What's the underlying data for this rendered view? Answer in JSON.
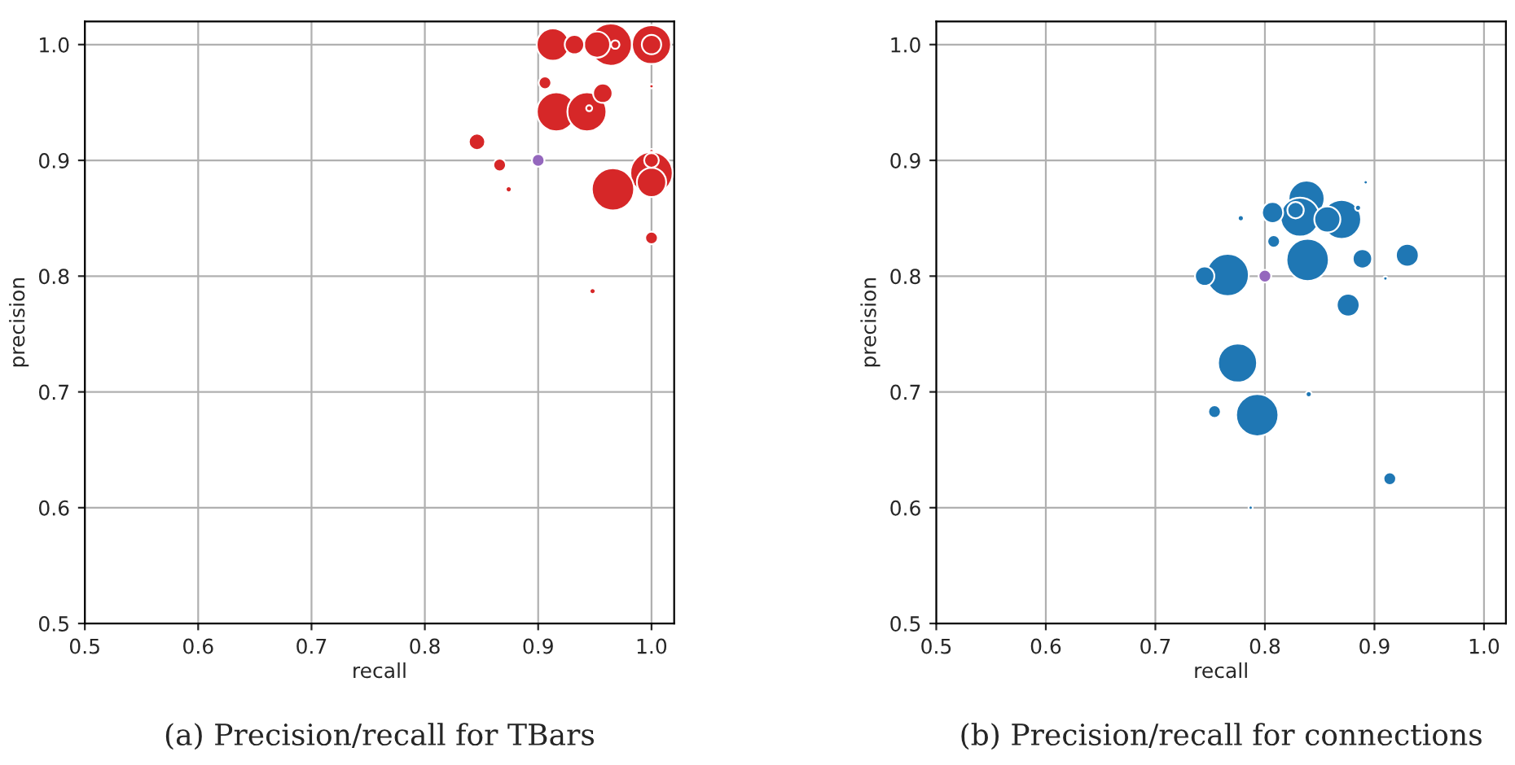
{
  "chart_data": [
    {
      "type": "bubble",
      "xlabel": "recall",
      "ylabel": "precision",
      "xlim": [
        0.5,
        1.02
      ],
      "ylim": [
        0.5,
        1.02
      ],
      "xticks": [
        0.5,
        0.6,
        0.7,
        0.8,
        0.9,
        {
          "value": 1,
          "label": "1.0"
        }
      ],
      "yticks": [
        0.5,
        0.6,
        0.7,
        0.8,
        0.9,
        {
          "value": 1,
          "label": "1.0"
        }
      ],
      "grid": true,
      "legend": false,
      "annotations": [
        "(a) Precision/recall for TBars"
      ],
      "series": [
        {
          "color": "#d62728",
          "x": [
            0.913,
            0.964,
            0.952,
            0.932,
            0.968,
            1.0,
            1.0,
            0.906,
            0.916,
            0.943,
            0.945,
            0.957,
            1.0,
            0.846,
            0.866,
            0.874,
            1.0,
            1.0,
            1.0,
            0.966,
            1.0,
            1.0,
            0.948
          ],
          "values": [
            1.0,
            1.0,
            1.0,
            1.0,
            1.0,
            1.0,
            1.0,
            0.967,
            0.942,
            0.942,
            0.945,
            0.958,
            0.964,
            0.916,
            0.896,
            0.875,
            0.908,
            0.889,
            0.881,
            0.875,
            0.9,
            0.833,
            0.787
          ],
          "sizes": [
            0.59,
            1,
            0.38,
            0.21,
            0.04,
            0.85,
            0.21,
            0.09,
            0.85,
            0.85,
            0.02,
            0.21,
            0.01,
            0.15,
            0.09,
            0.02,
            0.01,
            1,
            0.48,
            1,
            0.12,
            0.09,
            0.02
          ]
        },
        {
          "color": "#9467bd",
          "x": [
            0.9
          ],
          "values": [
            0.9
          ],
          "sizes": [
            0.09
          ]
        }
      ]
    },
    {
      "type": "bubble",
      "xlabel": "recall",
      "ylabel": "precision",
      "xlim": [
        0.5,
        1.02
      ],
      "ylim": [
        0.5,
        1.02
      ],
      "xticks": [
        0.5,
        0.6,
        0.7,
        0.8,
        0.9,
        {
          "value": 1,
          "label": "1.0"
        }
      ],
      "yticks": [
        0.5,
        0.6,
        0.7,
        0.8,
        0.9,
        {
          "value": 1,
          "label": "1.0"
        }
      ],
      "grid": true,
      "legend": false,
      "annotations": [
        "(b) Precision/recall for connections"
      ],
      "series": [
        {
          "color": "#1f77b4",
          "x": [
            0.838,
            0.832,
            0.828,
            0.807,
            0.778,
            0.87,
            0.857,
            0.885,
            0.892,
            0.808,
            0.839,
            0.889,
            0.93,
            0.766,
            0.745,
            0.91,
            0.876,
            0.775,
            0.84,
            0.754,
            0.793,
            0.914,
            0.787
          ],
          "values": [
            0.867,
            0.851,
            0.857,
            0.855,
            0.85,
            0.849,
            0.849,
            0.859,
            0.881,
            0.83,
            0.814,
            0.815,
            0.818,
            0.801,
            0.8,
            0.798,
            0.775,
            0.725,
            0.698,
            0.683,
            0.68,
            0.625,
            0.6
          ],
          "sizes": [
            0.72,
            0.85,
            0.15,
            0.25,
            0.02,
            0.85,
            0.38,
            0.02,
            0.01,
            0.09,
            1,
            0.21,
            0.29,
            1,
            0.21,
            0.01,
            0.29,
            0.85,
            0.02,
            0.09,
            1,
            0.09,
            0.01
          ]
        },
        {
          "color": "#9467bd",
          "x": [
            0.8
          ],
          "values": [
            0.8
          ],
          "sizes": [
            0.09
          ]
        }
      ]
    }
  ]
}
